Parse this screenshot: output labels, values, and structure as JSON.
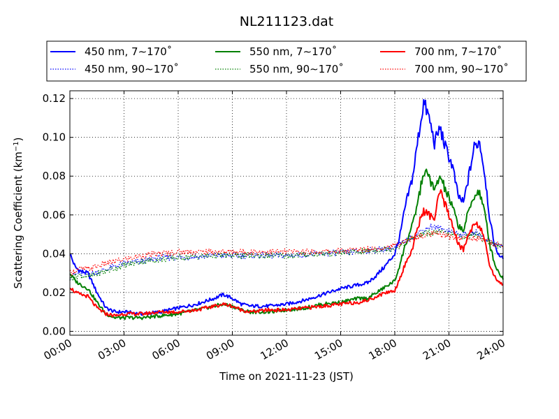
{
  "chart_data": {
    "type": "line",
    "title": "NL211123.dat",
    "xlabel": "Time on 2021-11-23 (JST)",
    "ylabel": "Scattering Coefficient (km",
    "ylabel_unit_sup": "−1",
    "ylabel_tail": ")",
    "xlim": [
      0,
      24
    ],
    "ylim": [
      -0.002,
      0.124
    ],
    "xticks": [
      0,
      3,
      6,
      9,
      12,
      15,
      18,
      21,
      24
    ],
    "xtick_labels": [
      "00:00",
      "03:00",
      "06:00",
      "09:00",
      "12:00",
      "15:00",
      "18:00",
      "21:00",
      "24:00"
    ],
    "yticks": [
      0.0,
      0.02,
      0.04,
      0.06,
      0.08,
      0.1,
      0.12
    ],
    "ytick_labels": [
      "0.00",
      "0.02",
      "0.04",
      "0.06",
      "0.08",
      "0.10",
      "0.12"
    ],
    "grid": true,
    "legend_position": "top",
    "series": [
      {
        "name": "450 nm, 7∼170˚",
        "color": "#0000ff",
        "style": "solid",
        "x": [
          0,
          0.3,
          0.6,
          1,
          1.5,
          2,
          2.5,
          3,
          4,
          5,
          6,
          7,
          8,
          8.5,
          9,
          9.5,
          10,
          11,
          12,
          13,
          14,
          15,
          16,
          16.5,
          17,
          17.5,
          18,
          18.3,
          18.6,
          19,
          19.3,
          19.6,
          19.9,
          20.2,
          20.5,
          20.8,
          21.2,
          21.5,
          21.8,
          22.1,
          22.4,
          22.7,
          23,
          23.3,
          23.6,
          24
        ],
        "y": [
          0.04,
          0.033,
          0.031,
          0.03,
          0.02,
          0.012,
          0.01,
          0.01,
          0.009,
          0.01,
          0.012,
          0.014,
          0.017,
          0.019,
          0.017,
          0.014,
          0.013,
          0.013,
          0.014,
          0.016,
          0.019,
          0.022,
          0.024,
          0.025,
          0.029,
          0.034,
          0.04,
          0.05,
          0.065,
          0.08,
          0.1,
          0.118,
          0.11,
          0.097,
          0.105,
          0.095,
          0.085,
          0.07,
          0.066,
          0.08,
          0.095,
          0.098,
          0.08,
          0.055,
          0.042,
          0.037
        ]
      },
      {
        "name": "450 nm, 90∼170˚",
        "color": "#0000ff",
        "style": "dotted",
        "x": [
          0,
          0.5,
          1,
          2,
          3,
          4,
          5,
          6,
          8,
          10,
          12,
          14,
          16,
          17,
          18,
          18.5,
          19,
          19.5,
          20,
          20.5,
          21,
          21.5,
          22,
          22.5,
          23,
          23.5,
          24
        ],
        "y": [
          0.028,
          0.03,
          0.029,
          0.032,
          0.035,
          0.036,
          0.038,
          0.038,
          0.039,
          0.039,
          0.039,
          0.04,
          0.041,
          0.042,
          0.043,
          0.046,
          0.049,
          0.052,
          0.054,
          0.053,
          0.052,
          0.05,
          0.05,
          0.051,
          0.048,
          0.045,
          0.044
        ]
      },
      {
        "name": "550 nm, 7∼170˚",
        "color": "#008000",
        "style": "solid",
        "x": [
          0,
          0.3,
          0.6,
          1,
          1.5,
          2,
          2.5,
          3,
          4,
          5,
          6,
          7,
          8,
          8.5,
          9,
          9.5,
          10,
          11,
          12,
          13,
          14,
          15,
          16,
          16.5,
          17,
          17.5,
          18,
          18.3,
          18.6,
          19,
          19.3,
          19.6,
          19.9,
          20.2,
          20.5,
          20.8,
          21.2,
          21.5,
          21.8,
          22.1,
          22.4,
          22.7,
          23,
          23.3,
          23.6,
          24
        ],
        "y": [
          0.03,
          0.026,
          0.024,
          0.022,
          0.015,
          0.009,
          0.007,
          0.007,
          0.007,
          0.008,
          0.009,
          0.011,
          0.013,
          0.014,
          0.013,
          0.011,
          0.01,
          0.01,
          0.011,
          0.012,
          0.014,
          0.015,
          0.017,
          0.017,
          0.02,
          0.023,
          0.026,
          0.035,
          0.045,
          0.055,
          0.068,
          0.082,
          0.08,
          0.072,
          0.08,
          0.073,
          0.064,
          0.055,
          0.052,
          0.062,
          0.07,
          0.072,
          0.06,
          0.043,
          0.033,
          0.027
        ]
      },
      {
        "name": "550 nm, 90∼170˚",
        "color": "#008000",
        "style": "dotted",
        "x": [
          0,
          0.5,
          1,
          2,
          3,
          4,
          5,
          6,
          8,
          10,
          12,
          14,
          16,
          17,
          18,
          18.5,
          19,
          19.5,
          20,
          20.5,
          21,
          21.5,
          22,
          22.5,
          23,
          23.5,
          24
        ],
        "y": [
          0.027,
          0.029,
          0.028,
          0.031,
          0.034,
          0.036,
          0.037,
          0.038,
          0.039,
          0.039,
          0.039,
          0.04,
          0.041,
          0.042,
          0.043,
          0.045,
          0.048,
          0.05,
          0.051,
          0.051,
          0.05,
          0.049,
          0.049,
          0.05,
          0.047,
          0.045,
          0.043
        ]
      },
      {
        "name": "700 nm, 7∼170˚",
        "color": "#ff0000",
        "style": "solid",
        "x": [
          0,
          0.3,
          0.6,
          1,
          1.5,
          2,
          2.5,
          3,
          4,
          5,
          6,
          7,
          8,
          8.5,
          9,
          9.5,
          10,
          11,
          12,
          13,
          14,
          15,
          16,
          16.5,
          17,
          17.5,
          18,
          18.3,
          18.6,
          19,
          19.3,
          19.6,
          19.9,
          20.2,
          20.5,
          20.8,
          21.2,
          21.5,
          21.8,
          22.1,
          22.4,
          22.7,
          23,
          23.3,
          23.6,
          24
        ],
        "y": [
          0.023,
          0.02,
          0.019,
          0.018,
          0.012,
          0.009,
          0.008,
          0.009,
          0.009,
          0.01,
          0.01,
          0.011,
          0.013,
          0.014,
          0.013,
          0.011,
          0.01,
          0.011,
          0.011,
          0.012,
          0.013,
          0.014,
          0.015,
          0.016,
          0.018,
          0.02,
          0.021,
          0.028,
          0.035,
          0.043,
          0.055,
          0.062,
          0.06,
          0.058,
          0.072,
          0.065,
          0.055,
          0.045,
          0.042,
          0.05,
          0.056,
          0.055,
          0.045,
          0.033,
          0.027,
          0.024
        ]
      },
      {
        "name": "700 nm, 90∼170˚",
        "color": "#ff0000",
        "style": "dotted",
        "x": [
          0,
          0.5,
          1,
          2,
          3,
          4,
          5,
          6,
          8,
          10,
          12,
          14,
          16,
          17,
          18,
          18.5,
          19,
          19.5,
          20,
          20.5,
          21,
          21.5,
          22,
          22.5,
          23,
          23.5,
          24
        ],
        "y": [
          0.03,
          0.032,
          0.032,
          0.035,
          0.037,
          0.039,
          0.04,
          0.041,
          0.041,
          0.041,
          0.041,
          0.041,
          0.042,
          0.043,
          0.044,
          0.046,
          0.048,
          0.049,
          0.05,
          0.05,
          0.049,
          0.048,
          0.048,
          0.048,
          0.047,
          0.045,
          0.044
        ]
      }
    ]
  }
}
